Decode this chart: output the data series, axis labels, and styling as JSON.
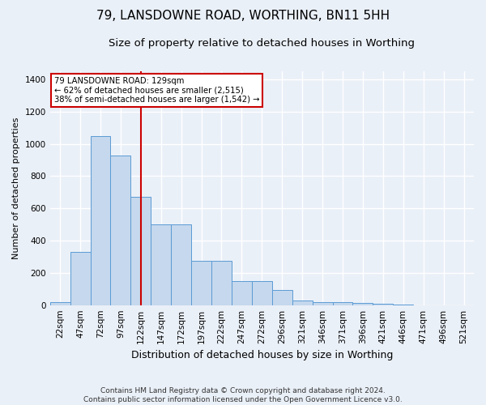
{
  "title": "79, LANSDOWNE ROAD, WORTHING, BN11 5HH",
  "subtitle": "Size of property relative to detached houses in Worthing",
  "xlabel": "Distribution of detached houses by size in Worthing",
  "ylabel": "Number of detached properties",
  "footer": "Contains HM Land Registry data © Crown copyright and database right 2024.\nContains public sector information licensed under the Open Government Licence v3.0.",
  "categories": [
    "22sqm",
    "47sqm",
    "72sqm",
    "97sqm",
    "122sqm",
    "147sqm",
    "172sqm",
    "197sqm",
    "222sqm",
    "247sqm",
    "272sqm",
    "296sqm",
    "321sqm",
    "346sqm",
    "371sqm",
    "396sqm",
    "421sqm",
    "446sqm",
    "471sqm",
    "496sqm",
    "521sqm"
  ],
  "values": [
    20,
    330,
    1050,
    930,
    670,
    500,
    500,
    275,
    275,
    150,
    150,
    95,
    30,
    20,
    20,
    15,
    8,
    4,
    0,
    0,
    0
  ],
  "bar_color": "#c5d8ed",
  "bar_edge_color": "#5b9bd5",
  "red_line_x": 4.0,
  "annotation_text": "79 LANSDOWNE ROAD: 129sqm\n← 62% of detached houses are smaller (2,515)\n38% of semi-detached houses are larger (1,542) →",
  "annotation_box_color": "#ffffff",
  "annotation_box_edge": "#cc0000",
  "ylim": [
    0,
    1450
  ],
  "yticks": [
    0,
    200,
    400,
    600,
    800,
    1000,
    1200,
    1400
  ],
  "bg_color": "#eaf0f8",
  "plot_bg_color": "#eaf0f8",
  "grid_color": "#ffffff",
  "title_fontsize": 11,
  "subtitle_fontsize": 9.5,
  "ylabel_fontsize": 8,
  "xlabel_fontsize": 9,
  "tick_fontsize": 7.5,
  "footer_fontsize": 6.5
}
